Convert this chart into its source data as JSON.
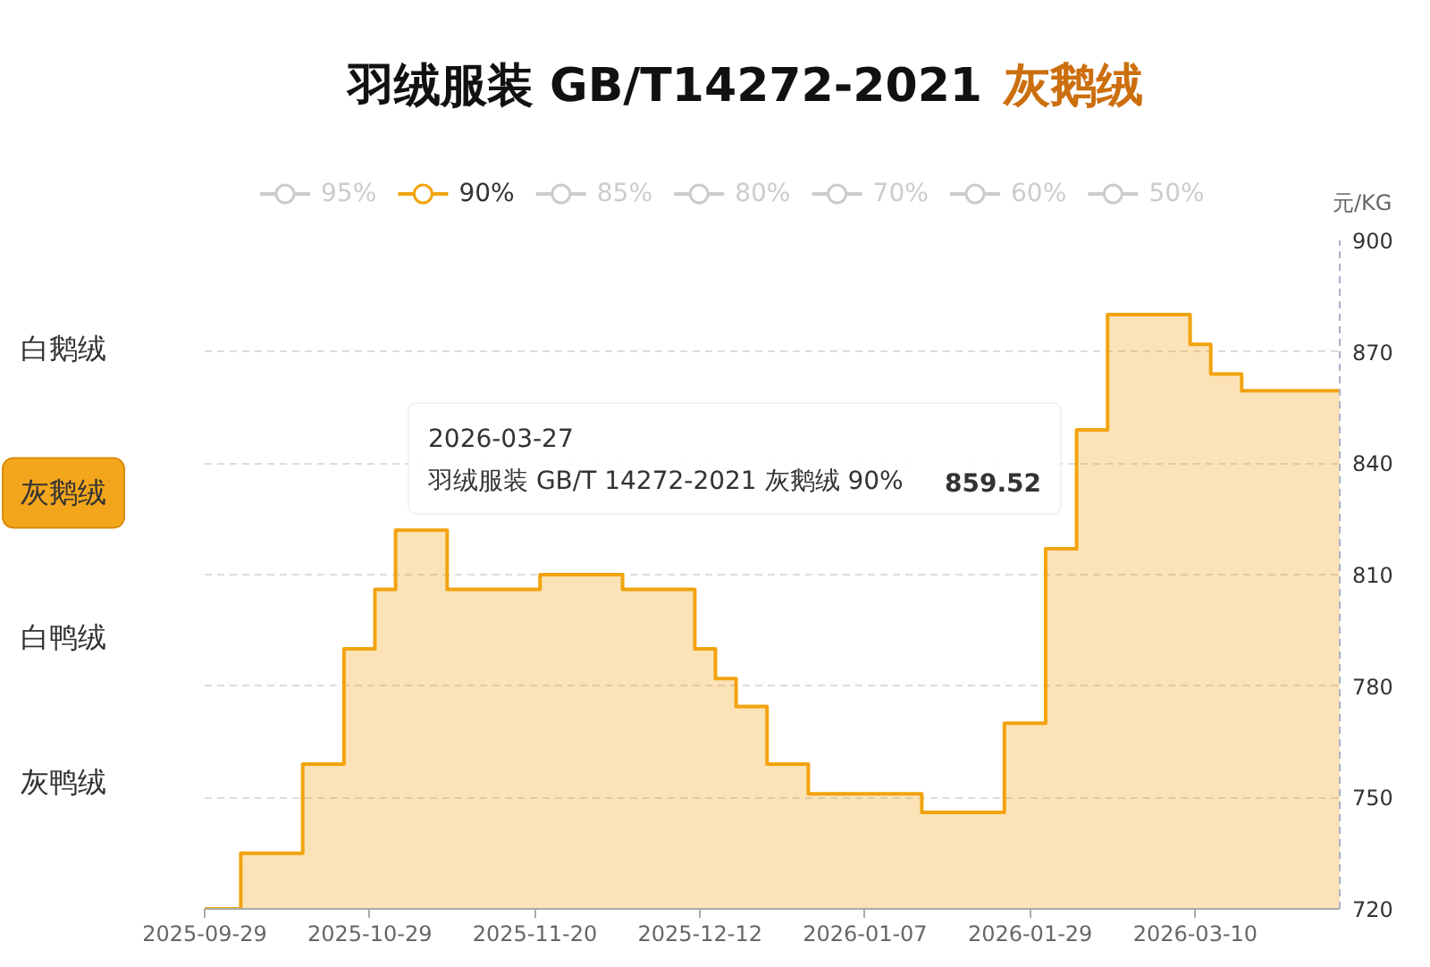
{
  "chart_data": {
    "type": "step",
    "title": "羽绒服装 GB/T14272-2021",
    "subtitle": "灰鹅绒",
    "ylabel": "元/KG",
    "categories": [
      "2025-09-29",
      null,
      null,
      null,
      null,
      null,
      null,
      null,
      null,
      null,
      null,
      null,
      null,
      null,
      null,
      null,
      "2025-10-29",
      null,
      null,
      null,
      null,
      null,
      null,
      null,
      null,
      null,
      null,
      null,
      null,
      null,
      null,
      null,
      "2025-11-20",
      null,
      null,
      null,
      null,
      null,
      null,
      null,
      null,
      null,
      null,
      null,
      null,
      null,
      null,
      null,
      "2025-12-12",
      null,
      null,
      null,
      null,
      null,
      null,
      null,
      null,
      null,
      null,
      null,
      null,
      null,
      null,
      null,
      "2026-01-07",
      null,
      null,
      null,
      null,
      null,
      null,
      null,
      null,
      null,
      null,
      null,
      null,
      null,
      null,
      null,
      "2026-01-29",
      null,
      null,
      null,
      null,
      null,
      null,
      null,
      null,
      null,
      null,
      null,
      null,
      null,
      null,
      null,
      "2026-03-10",
      null,
      null,
      null,
      null,
      null,
      null,
      null,
      null,
      null,
      null,
      null,
      null,
      null,
      null
    ],
    "ylim": [
      720,
      900
    ],
    "yticks": [
      720,
      750,
      780,
      810,
      840,
      870,
      900
    ],
    "grid": "y",
    "legend": "top",
    "series": [
      {
        "name": "95%",
        "color": "#cccccc",
        "values": [
          null,
          null,
          null,
          null,
          null,
          null,
          null,
          null,
          null,
          null,
          null,
          null,
          null,
          null,
          null,
          null,
          null,
          null,
          null,
          null,
          null,
          null,
          null,
          null,
          null,
          null,
          null,
          null,
          null,
          null,
          null,
          null,
          null,
          null,
          null,
          null,
          null,
          null,
          null,
          null,
          null,
          null,
          null,
          null,
          null,
          null,
          null,
          null,
          null,
          null,
          null,
          null,
          null,
          null,
          null,
          null,
          null,
          null,
          null,
          null,
          null,
          null,
          null,
          null,
          null,
          null,
          null,
          null,
          null,
          null,
          null,
          null,
          null,
          null,
          null,
          null,
          null,
          null,
          null,
          null,
          null,
          null,
          null,
          null,
          null,
          null,
          null,
          null,
          null,
          null,
          null,
          null,
          null,
          null,
          null,
          null,
          null,
          null,
          null,
          null,
          null,
          null,
          null,
          null,
          null,
          null,
          null,
          null,
          null,
          null,
          null
        ]
      },
      {
        "name": "90%",
        "color": "#f2a30f",
        "values": [
          720,
          720,
          720,
          720,
          735,
          735,
          735,
          735,
          735,
          735,
          759,
          759,
          759,
          759,
          790,
          790,
          790,
          806,
          806,
          822,
          822,
          822,
          822,
          822,
          806,
          806,
          806,
          806,
          806,
          806,
          806,
          806,
          806,
          810,
          810,
          810,
          810,
          810,
          810,
          810,
          810,
          806,
          806,
          806,
          806,
          806,
          806,
          806,
          790,
          790,
          782,
          782,
          774.5,
          774.5,
          774.5,
          759,
          759,
          759,
          759,
          751,
          751,
          751,
          751,
          751,
          751,
          751,
          751,
          751,
          751,
          751,
          746,
          746,
          746,
          746,
          746,
          746,
          746,
          746,
          770,
          770,
          770,
          770,
          817,
          817,
          817,
          849,
          849,
          849,
          880,
          880,
          880,
          880,
          880,
          880,
          880,
          880,
          872,
          872,
          864,
          864,
          864,
          859.52,
          859.52,
          859.52,
          859.52,
          859.52,
          859.52,
          859.52,
          859.52,
          859.52,
          859.52
        ]
      },
      {
        "name": "85%",
        "color": "#cccccc",
        "values": [
          null,
          null,
          null,
          null,
          null,
          null,
          null,
          null,
          null,
          null,
          null,
          null,
          null,
          null,
          null,
          null,
          null,
          null,
          null,
          null,
          null,
          null,
          null,
          null,
          null,
          null,
          null,
          null,
          null,
          null,
          null,
          null,
          null,
          null,
          null,
          null,
          null,
          null,
          null,
          null,
          null,
          null,
          null,
          null,
          null,
          null,
          null,
          null,
          null,
          null,
          null,
          null,
          null,
          null,
          null,
          null,
          null,
          null,
          null,
          null,
          null,
          null,
          null,
          null,
          null,
          null,
          null,
          null,
          null,
          null,
          null,
          null,
          null,
          null,
          null,
          null,
          null,
          null,
          null,
          null,
          null,
          null,
          null,
          null,
          null,
          null,
          null,
          null,
          null,
          null,
          null,
          null,
          null,
          null,
          null,
          null,
          null,
          null,
          null,
          null,
          null,
          null,
          null,
          null,
          null,
          null,
          null,
          null,
          null,
          null,
          null
        ]
      },
      {
        "name": "80%",
        "color": "#cccccc",
        "values": [
          null,
          null,
          null,
          null,
          null,
          null,
          null,
          null,
          null,
          null,
          null,
          null,
          null,
          null,
          null,
          null,
          null,
          null,
          null,
          null,
          null,
          null,
          null,
          null,
          null,
          null,
          null,
          null,
          null,
          null,
          null,
          null,
          null,
          null,
          null,
          null,
          null,
          null,
          null,
          null,
          null,
          null,
          null,
          null,
          null,
          null,
          null,
          null,
          null,
          null,
          null,
          null,
          null,
          null,
          null,
          null,
          null,
          null,
          null,
          null,
          null,
          null,
          null,
          null,
          null,
          null,
          null,
          null,
          null,
          null,
          null,
          null,
          null,
          null,
          null,
          null,
          null,
          null,
          null,
          null,
          null,
          null,
          null,
          null,
          null,
          null,
          null,
          null,
          null,
          null,
          null,
          null,
          null,
          null,
          null,
          null,
          null,
          null,
          null,
          null,
          null,
          null,
          null,
          null,
          null,
          null,
          null,
          null,
          null,
          null,
          null
        ]
      },
      {
        "name": "70%",
        "color": "#cccccc",
        "values": [
          null,
          null,
          null,
          null,
          null,
          null,
          null,
          null,
          null,
          null,
          null,
          null,
          null,
          null,
          null,
          null,
          null,
          null,
          null,
          null,
          null,
          null,
          null,
          null,
          null,
          null,
          null,
          null,
          null,
          null,
          null,
          null,
          null,
          null,
          null,
          null,
          null,
          null,
          null,
          null,
          null,
          null,
          null,
          null,
          null,
          null,
          null,
          null,
          null,
          null,
          null,
          null,
          null,
          null,
          null,
          null,
          null,
          null,
          null,
          null,
          null,
          null,
          null,
          null,
          null,
          null,
          null,
          null,
          null,
          null,
          null,
          null,
          null,
          null,
          null,
          null,
          null,
          null,
          null,
          null,
          null,
          null,
          null,
          null,
          null,
          null,
          null,
          null,
          null,
          null,
          null,
          null,
          null,
          null,
          null,
          null,
          null,
          null,
          null,
          null,
          null,
          null,
          null,
          null,
          null,
          null,
          null,
          null,
          null,
          null,
          null
        ]
      },
      {
        "name": "60%",
        "color": "#cccccc",
        "values": [
          null,
          null,
          null,
          null,
          null,
          null,
          null,
          null,
          null,
          null,
          null,
          null,
          null,
          null,
          null,
          null,
          null,
          null,
          null,
          null,
          null,
          null,
          null,
          null,
          null,
          null,
          null,
          null,
          null,
          null,
          null,
          null,
          null,
          null,
          null,
          null,
          null,
          null,
          null,
          null,
          null,
          null,
          null,
          null,
          null,
          null,
          null,
          null,
          null,
          null,
          null,
          null,
          null,
          null,
          null,
          null,
          null,
          null,
          null,
          null,
          null,
          null,
          null,
          null,
          null,
          null,
          null,
          null,
          null,
          null,
          null,
          null,
          null,
          null,
          null,
          null,
          null,
          null,
          null,
          null,
          null,
          null,
          null,
          null,
          null,
          null,
          null,
          null,
          null,
          null,
          null,
          null,
          null,
          null,
          null,
          null,
          null,
          null,
          null,
          null,
          null,
          null,
          null,
          null,
          null,
          null,
          null,
          null,
          null,
          null,
          null
        ]
      },
      {
        "name": "50%",
        "color": "#cccccc",
        "values": [
          null,
          null,
          null,
          null,
          null,
          null,
          null,
          null,
          null,
          null,
          null,
          null,
          null,
          null,
          null,
          null,
          null,
          null,
          null,
          null,
          null,
          null,
          null,
          null,
          null,
          null,
          null,
          null,
          null,
          null,
          null,
          null,
          null,
          null,
          null,
          null,
          null,
          null,
          null,
          null,
          null,
          null,
          null,
          null,
          null,
          null,
          null,
          null,
          null,
          null,
          null,
          null,
          null,
          null,
          null,
          null,
          null,
          null,
          null,
          null,
          null,
          null,
          null,
          null,
          null,
          null,
          null,
          null,
          null,
          null,
          null,
          null,
          null,
          null,
          null,
          null,
          null,
          null,
          null,
          null,
          null,
          null,
          null,
          null,
          null,
          null,
          null,
          null,
          null,
          null,
          null,
          null,
          null,
          null,
          null,
          null,
          null,
          null,
          null,
          null,
          null,
          null,
          null,
          null,
          null,
          null,
          null,
          null,
          null,
          null,
          null
        ]
      }
    ],
    "annotations": [
      "2026-03-27",
      "羽绒服装 GB/T 14272-2021 灰鹅绒 90%",
      "859.52",
      "白鹅绒",
      "灰鹅绒",
      "白鸭绒",
      "灰鸭绒"
    ]
  }
}
